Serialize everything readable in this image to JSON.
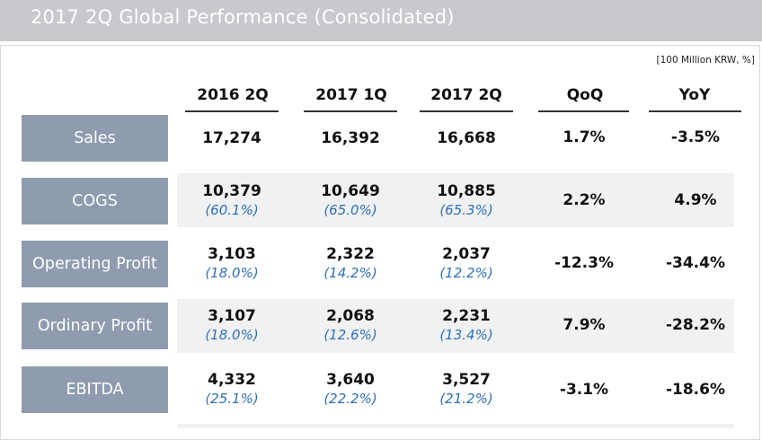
{
  "title": "2017 2Q Global Performance (Consolidated)",
  "unit": "[100 Million KRW, %]",
  "columns": [
    "2016 2Q",
    "2017 1Q",
    "2017 2Q",
    "QoQ",
    "YoY"
  ],
  "rows": [
    {
      "label": "Sales",
      "v1": "17,274",
      "p1": "",
      "v2": "16,392",
      "p2": "",
      "v3": "16,668",
      "p3": "",
      "qoq": "1.7%",
      "yoy": "-3.5%"
    },
    {
      "label": "COGS",
      "v1": "10,379",
      "p1": "(60.1%)",
      "v2": "10,649",
      "p2": "(65.0%)",
      "v3": "10,885",
      "p3": "(65.3%)",
      "qoq": "2.2%",
      "yoy": "4.9%"
    },
    {
      "label": "Operating Profit",
      "v1": "3,103",
      "p1": "(18.0%)",
      "v2": "2,322",
      "p2": "(14.2%)",
      "v3": "2,037",
      "p3": "(12.2%)",
      "qoq": "-12.3%",
      "yoy": "-34.4%"
    },
    {
      "label": "Ordinary Profit",
      "v1": "3,107",
      "p1": "(18.0%)",
      "v2": "2,068",
      "p2": "(12.6%)",
      "v3": "2,231",
      "p3": "(13.4%)",
      "qoq": "7.9%",
      "yoy": "-28.2%"
    },
    {
      "label": "EBITDA",
      "v1": "4,332",
      "p1": "(25.1%)",
      "v2": "3,640",
      "p2": "(22.2%)",
      "v3": "3,527",
      "p3": "(21.2%)",
      "qoq": "-3.1%",
      "yoy": "-18.6%"
    }
  ]
}
